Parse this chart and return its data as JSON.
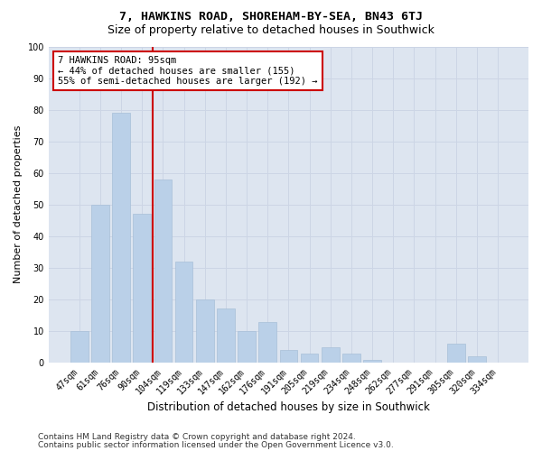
{
  "title1": "7, HAWKINS ROAD, SHOREHAM-BY-SEA, BN43 6TJ",
  "title2": "Size of property relative to detached houses in Southwick",
  "xlabel": "Distribution of detached houses by size in Southwick",
  "ylabel": "Number of detached properties",
  "categories": [
    "47sqm",
    "61sqm",
    "76sqm",
    "90sqm",
    "104sqm",
    "119sqm",
    "133sqm",
    "147sqm",
    "162sqm",
    "176sqm",
    "191sqm",
    "205sqm",
    "219sqm",
    "234sqm",
    "248sqm",
    "262sqm",
    "277sqm",
    "291sqm",
    "305sqm",
    "320sqm",
    "334sqm"
  ],
  "values": [
    10,
    50,
    79,
    47,
    58,
    32,
    20,
    17,
    10,
    13,
    4,
    3,
    5,
    3,
    1,
    0,
    0,
    0,
    6,
    2,
    0
  ],
  "bar_color": "#bad0e8",
  "bar_edge_color": "#a8bfd8",
  "vline_x_index": 3,
  "vline_color": "#cc0000",
  "annotation_text": "7 HAWKINS ROAD: 95sqm\n← 44% of detached houses are smaller (155)\n55% of semi-detached houses are larger (192) →",
  "annotation_box_color": "#ffffff",
  "annotation_box_edge": "#cc0000",
  "ylim": [
    0,
    100
  ],
  "yticks": [
    0,
    10,
    20,
    30,
    40,
    50,
    60,
    70,
    80,
    90,
    100
  ],
  "grid_color": "#ccd5e5",
  "background_color": "#dde5f0",
  "footer1": "Contains HM Land Registry data © Crown copyright and database right 2024.",
  "footer2": "Contains public sector information licensed under the Open Government Licence v3.0.",
  "title1_fontsize": 9.5,
  "title2_fontsize": 9,
  "xlabel_fontsize": 8.5,
  "ylabel_fontsize": 8,
  "tick_fontsize": 7,
  "annotation_fontsize": 7.5,
  "footer_fontsize": 6.5
}
